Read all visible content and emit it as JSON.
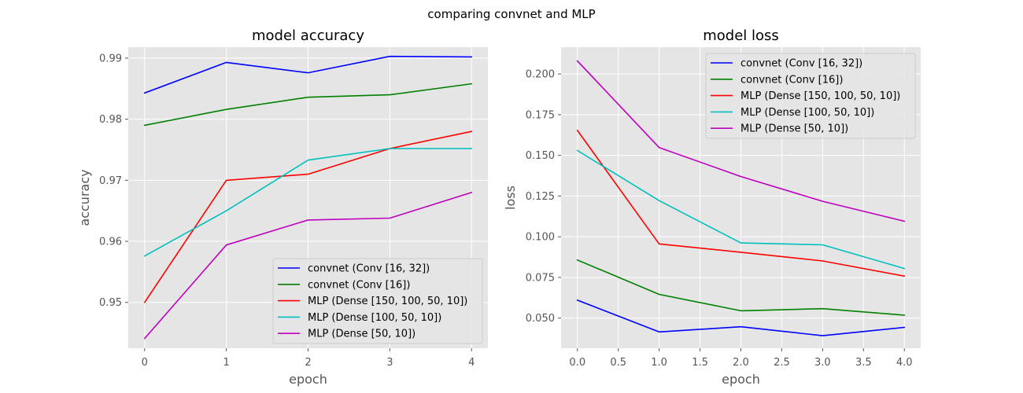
{
  "suptitle": "comparing convnet and MLP",
  "colors": {
    "axes_bg": "#e5e5e5",
    "grid": "#ffffff",
    "tick_text": "#555555",
    "legend_bg": "#e5e5e5",
    "legend_border": "#cccccc"
  },
  "chart_data": [
    {
      "type": "line",
      "title": "model accuracy",
      "xlabel": "epoch",
      "ylabel": "accuracy",
      "x": [
        0,
        1,
        2,
        3,
        4
      ],
      "xlim": [
        -0.2,
        4.2
      ],
      "ylim": [
        0.9425,
        0.9918
      ],
      "xticks": [
        0,
        1,
        2,
        3,
        4
      ],
      "xtick_labels": [
        "0",
        "1",
        "2",
        "3",
        "4"
      ],
      "yticks": [
        0.95,
        0.96,
        0.97,
        0.98,
        0.99
      ],
      "ytick_labels": [
        "0.95",
        "0.96",
        "0.97",
        "0.98",
        "0.99"
      ],
      "grid": true,
      "legend": "lower right",
      "series": [
        {
          "name": "convnet (Conv [16, 32])",
          "color": "#0000ff",
          "values": [
            0.9843,
            0.9893,
            0.9876,
            0.9903,
            0.9902
          ]
        },
        {
          "name": "convnet (Conv [16])",
          "color": "#008000",
          "values": [
            0.979,
            0.9816,
            0.9836,
            0.984,
            0.9858
          ]
        },
        {
          "name": "MLP (Dense [150, 100, 50, 10])",
          "color": "#ff0000",
          "values": [
            0.95,
            0.97,
            0.971,
            0.9752,
            0.978
          ]
        },
        {
          "name": "MLP (Dense [100, 50, 10])",
          "color": "#00bfbf",
          "values": [
            0.9576,
            0.965,
            0.9733,
            0.9752,
            0.9752
          ]
        },
        {
          "name": "MLP (Dense [50, 10])",
          "color": "#bf00bf",
          "values": [
            0.9441,
            0.9594,
            0.9635,
            0.9638,
            0.968
          ]
        }
      ]
    },
    {
      "type": "line",
      "title": "model loss",
      "xlabel": "epoch",
      "ylabel": "loss",
      "x": [
        0,
        1,
        2,
        3,
        4
      ],
      "xlim": [
        -0.2,
        4.2
      ],
      "ylim": [
        0.0315,
        0.2165
      ],
      "xticks": [
        0,
        0.5,
        1,
        1.5,
        2,
        2.5,
        3,
        3.5,
        4
      ],
      "xtick_labels": [
        "0.0",
        "0.5",
        "1.0",
        "1.5",
        "2.0",
        "2.5",
        "3.0",
        "3.5",
        "4.0"
      ],
      "yticks": [
        0.05,
        0.075,
        0.1,
        0.125,
        0.15,
        0.175,
        0.2
      ],
      "ytick_labels": [
        "0.050",
        "0.075",
        "0.100",
        "0.125",
        "0.150",
        "0.175",
        "0.200"
      ],
      "grid": true,
      "legend": "upper right",
      "series": [
        {
          "name": "convnet (Conv [16, 32])",
          "color": "#0000ff",
          "values": [
            0.061,
            0.0415,
            0.0447,
            0.0392,
            0.0443
          ]
        },
        {
          "name": "convnet (Conv [16])",
          "color": "#008000",
          "values": [
            0.0857,
            0.0646,
            0.0545,
            0.0558,
            0.0518
          ]
        },
        {
          "name": "MLP (Dense [150, 100, 50, 10])",
          "color": "#ff0000",
          "values": [
            0.1653,
            0.0956,
            0.0905,
            0.0851,
            0.0758
          ]
        },
        {
          "name": "MLP (Dense [100, 50, 10])",
          "color": "#00bfbf",
          "values": [
            0.153,
            0.1222,
            0.0962,
            0.095,
            0.0805
          ]
        },
        {
          "name": "MLP (Dense [50, 10])",
          "color": "#bf00bf",
          "values": [
            0.208,
            0.1548,
            0.137,
            0.1218,
            0.1095
          ]
        }
      ]
    }
  ]
}
